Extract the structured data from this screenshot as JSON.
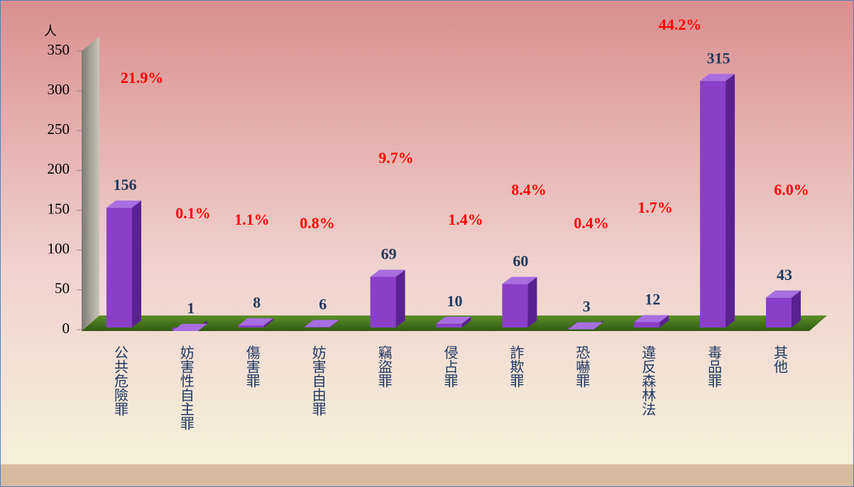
{
  "chart_data": {
    "type": "bar3d",
    "y_label": "人",
    "categories": [
      "公共危險罪",
      "妨害性自主罪",
      "傷害罪",
      "妨害自由罪",
      "竊盜罪",
      "侵占罪",
      "詐欺罪",
      "恐嚇罪",
      "違反森林法",
      "毒品罪",
      "其他"
    ],
    "values": [
      156,
      1,
      8,
      6,
      69,
      10,
      60,
      3,
      12,
      315,
      43
    ],
    "annotations": [
      "21.9%",
      "0.1%",
      "1.1%",
      "0.8%",
      "9.7%",
      "1.4%",
      "8.4%",
      "0.4%",
      "1.7%",
      "44.2%",
      "6.0%"
    ],
    "color": "#8a3fc9",
    "ylim": [
      0,
      350
    ],
    "yticks": [
      0,
      50,
      100,
      150,
      200,
      250,
      300,
      350
    ]
  }
}
